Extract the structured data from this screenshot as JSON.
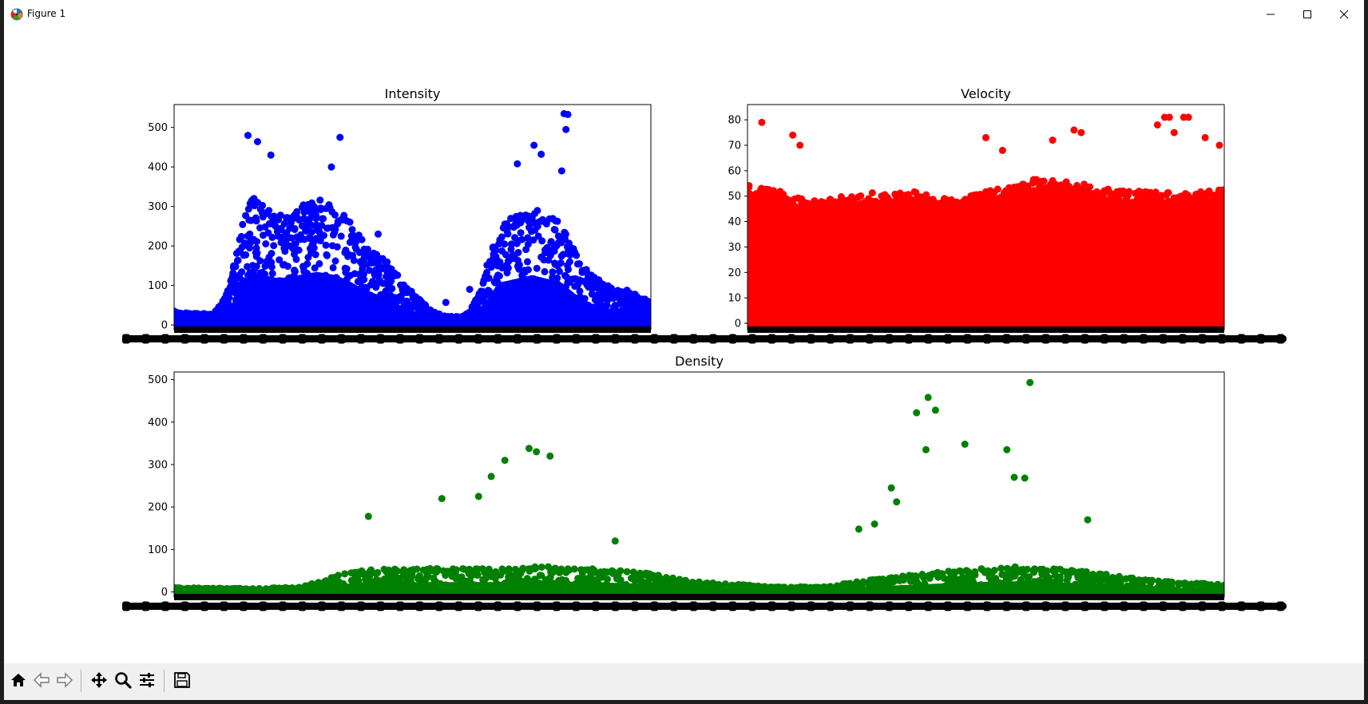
{
  "window": {
    "title": "Figure 1",
    "controls": [
      "minimize",
      "maximize",
      "close"
    ]
  },
  "toolbar": {
    "buttons": [
      {
        "name": "home",
        "icon": "home-icon"
      },
      {
        "name": "back",
        "icon": "arrow-left-icon"
      },
      {
        "name": "forward",
        "icon": "arrow-right-icon"
      },
      {
        "name": "pan",
        "icon": "move-icon"
      },
      {
        "name": "zoom",
        "icon": "magnifier-icon"
      },
      {
        "name": "configure-subplots",
        "icon": "sliders-icon"
      },
      {
        "name": "save",
        "icon": "floppy-disk-icon"
      }
    ]
  },
  "chart_data": [
    {
      "type": "scatter",
      "title": "Intensity",
      "color": "#0000ff",
      "xlabel": "",
      "ylabel": "",
      "yticks": [
        0,
        100,
        200,
        300,
        400,
        500
      ],
      "ylim": [
        -12,
        558
      ],
      "xlim": [
        0,
        100
      ],
      "x_tick_labels": "overlapping, unreadable",
      "grid": false,
      "legend": "none",
      "profile": [
        [
          0,
          35
        ],
        [
          3,
          30
        ],
        [
          8,
          28
        ],
        [
          10,
          55
        ],
        [
          12,
          120
        ],
        [
          14,
          250
        ],
        [
          16,
          330
        ],
        [
          19,
          300
        ],
        [
          22,
          280
        ],
        [
          26,
          300
        ],
        [
          30,
          320
        ],
        [
          34,
          300
        ],
        [
          37,
          260
        ],
        [
          40,
          210
        ],
        [
          44,
          170
        ],
        [
          48,
          110
        ],
        [
          51,
          70
        ],
        [
          54,
          35
        ],
        [
          57,
          22
        ],
        [
          60,
          22
        ],
        [
          62,
          35
        ],
        [
          64,
          80
        ],
        [
          66,
          170
        ],
        [
          69,
          260
        ],
        [
          72,
          280
        ],
        [
          75,
          300
        ],
        [
          78,
          280
        ],
        [
          81,
          260
        ],
        [
          84,
          190
        ],
        [
          87,
          130
        ],
        [
          91,
          100
        ],
        [
          95,
          90
        ],
        [
          98,
          70
        ],
        [
          100,
          60
        ]
      ],
      "outliers": [
        {
          "x": 15.5,
          "y": 480
        },
        {
          "x": 17.5,
          "y": 464
        },
        {
          "x": 20.3,
          "y": 430
        },
        {
          "x": 33,
          "y": 400
        },
        {
          "x": 34.8,
          "y": 475
        },
        {
          "x": 42.8,
          "y": 230
        },
        {
          "x": 72,
          "y": 408
        },
        {
          "x": 75.5,
          "y": 455
        },
        {
          "x": 77,
          "y": 432
        },
        {
          "x": 81.3,
          "y": 390
        },
        {
          "x": 81.8,
          "y": 535
        },
        {
          "x": 82.6,
          "y": 533
        },
        {
          "x": 82.2,
          "y": 495
        },
        {
          "x": 57,
          "y": 57
        },
        {
          "x": 62,
          "y": 90
        }
      ]
    },
    {
      "type": "scatter",
      "title": "Velocity",
      "color": "#ff0000",
      "xlabel": "",
      "ylabel": "",
      "yticks": [
        0,
        10,
        20,
        30,
        40,
        50,
        60,
        70,
        80
      ],
      "ylim": [
        -2.5,
        86
      ],
      "xlim": [
        0,
        100
      ],
      "x_tick_labels": "overlapping, unreadable",
      "grid": false,
      "legend": "none",
      "profile": [
        [
          0,
          55
        ],
        [
          5,
          53
        ],
        [
          10,
          50
        ],
        [
          15,
          48
        ],
        [
          20,
          50
        ],
        [
          25,
          52
        ],
        [
          30,
          51
        ],
        [
          35,
          52
        ],
        [
          40,
          50
        ],
        [
          45,
          49
        ],
        [
          50,
          52
        ],
        [
          55,
          54
        ],
        [
          58,
          56
        ],
        [
          60,
          57
        ],
        [
          65,
          56
        ],
        [
          70,
          55
        ],
        [
          75,
          53
        ],
        [
          80,
          52
        ],
        [
          85,
          52
        ],
        [
          90,
          51
        ],
        [
          95,
          52
        ],
        [
          100,
          53
        ]
      ],
      "outliers": [
        {
          "x": 3,
          "y": 79
        },
        {
          "x": 9.5,
          "y": 74
        },
        {
          "x": 11,
          "y": 70
        },
        {
          "x": 50,
          "y": 73
        },
        {
          "x": 53.5,
          "y": 68
        },
        {
          "x": 64,
          "y": 72
        },
        {
          "x": 68.5,
          "y": 76
        },
        {
          "x": 70,
          "y": 75
        },
        {
          "x": 86,
          "y": 78
        },
        {
          "x": 87.5,
          "y": 81
        },
        {
          "x": 88.5,
          "y": 81
        },
        {
          "x": 91.5,
          "y": 81
        },
        {
          "x": 92.5,
          "y": 81
        },
        {
          "x": 89.5,
          "y": 75
        },
        {
          "x": 96,
          "y": 73
        },
        {
          "x": 99,
          "y": 70
        }
      ]
    },
    {
      "type": "scatter",
      "title": "Density",
      "color": "#008000",
      "xlabel": "",
      "ylabel": "",
      "yticks": [
        0,
        100,
        200,
        300,
        400,
        500
      ],
      "ylim": [
        -12,
        518
      ],
      "xlim": [
        0,
        100
      ],
      "x_tick_labels": "overlapping, unreadable",
      "grid": false,
      "legend": "none",
      "profile": [
        [
          0,
          10
        ],
        [
          8,
          8
        ],
        [
          12,
          12
        ],
        [
          14,
          25
        ],
        [
          16,
          45
        ],
        [
          20,
          55
        ],
        [
          25,
          55
        ],
        [
          30,
          55
        ],
        [
          35,
          60
        ],
        [
          40,
          55
        ],
        [
          45,
          45
        ],
        [
          48,
          30
        ],
        [
          52,
          20
        ],
        [
          58,
          12
        ],
        [
          62,
          12
        ],
        [
          64,
          20
        ],
        [
          68,
          35
        ],
        [
          72,
          45
        ],
        [
          76,
          55
        ],
        [
          80,
          60
        ],
        [
          84,
          55
        ],
        [
          88,
          45
        ],
        [
          92,
          30
        ],
        [
          96,
          22
        ],
        [
          100,
          18
        ]
      ],
      "outliers": [
        {
          "x": 33.8,
          "y": 338
        },
        {
          "x": 34.5,
          "y": 330
        },
        {
          "x": 35.8,
          "y": 320
        },
        {
          "x": 31.5,
          "y": 310
        },
        {
          "x": 30.2,
          "y": 272
        },
        {
          "x": 29,
          "y": 225
        },
        {
          "x": 25.5,
          "y": 220
        },
        {
          "x": 18.5,
          "y": 178
        },
        {
          "x": 42,
          "y": 120
        },
        {
          "x": 71.8,
          "y": 458
        },
        {
          "x": 81.5,
          "y": 493
        },
        {
          "x": 70.7,
          "y": 422
        },
        {
          "x": 72.5,
          "y": 428
        },
        {
          "x": 71.6,
          "y": 335
        },
        {
          "x": 75.3,
          "y": 348
        },
        {
          "x": 79.3,
          "y": 335
        },
        {
          "x": 68.3,
          "y": 245
        },
        {
          "x": 68.8,
          "y": 212
        },
        {
          "x": 80,
          "y": 270
        },
        {
          "x": 81,
          "y": 268
        },
        {
          "x": 66.7,
          "y": 160
        },
        {
          "x": 65.2,
          "y": 148
        },
        {
          "x": 87,
          "y": 170
        }
      ]
    }
  ]
}
